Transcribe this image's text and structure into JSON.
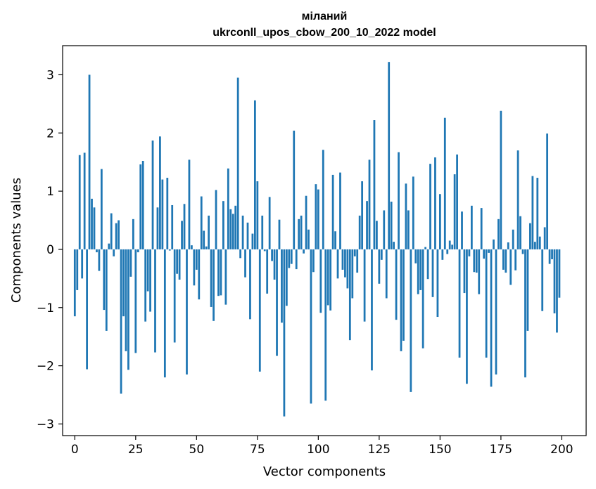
{
  "chart_data": {
    "type": "bar",
    "title": "міланий",
    "subtitle": "ukrconll_upos_cbow_200_10_2022 model",
    "xlabel": "Vector components",
    "ylabel": "Components values",
    "xlim": [
      -5,
      210
    ],
    "ylim": [
      -3.2,
      3.5
    ],
    "xticks": [
      0,
      25,
      50,
      75,
      100,
      125,
      150,
      175,
      200
    ],
    "yticks": [
      -3,
      -2,
      -1,
      0,
      1,
      2,
      3
    ],
    "grid": false,
    "legend": "none",
    "bar_color": "#1f77b4",
    "x": [
      0,
      1,
      2,
      3,
      4,
      5,
      6,
      7,
      8,
      9,
      10,
      11,
      12,
      13,
      14,
      15,
      16,
      17,
      18,
      19,
      20,
      21,
      22,
      23,
      24,
      25,
      26,
      27,
      28,
      29,
      30,
      31,
      32,
      33,
      34,
      35,
      36,
      37,
      38,
      39,
      40,
      41,
      42,
      43,
      44,
      45,
      46,
      47,
      48,
      49,
      50,
      51,
      52,
      53,
      54,
      55,
      56,
      57,
      58,
      59,
      60,
      61,
      62,
      63,
      64,
      65,
      66,
      67,
      68,
      69,
      70,
      71,
      72,
      73,
      74,
      75,
      76,
      77,
      78,
      79,
      80,
      81,
      82,
      83,
      84,
      85,
      86,
      87,
      88,
      89,
      90,
      91,
      92,
      93,
      94,
      95,
      96,
      97,
      98,
      99,
      100,
      101,
      102,
      103,
      104,
      105,
      106,
      107,
      108,
      109,
      110,
      111,
      112,
      113,
      114,
      115,
      116,
      117,
      118,
      119,
      120,
      121,
      122,
      123,
      124,
      125,
      126,
      127,
      128,
      129,
      130,
      131,
      132,
      133,
      134,
      135,
      136,
      137,
      138,
      139,
      140,
      141,
      142,
      143,
      144,
      145,
      146,
      147,
      148,
      149,
      150,
      151,
      152,
      153,
      154,
      155,
      156,
      157,
      158,
      159,
      160,
      161,
      162,
      163,
      164,
      165,
      166,
      167,
      168,
      169,
      170,
      171,
      172,
      173,
      174,
      175,
      176,
      177,
      178,
      179,
      180,
      181,
      182,
      183,
      184,
      185,
      186,
      187,
      188,
      189,
      190,
      191,
      192,
      193,
      194,
      195,
      196,
      197,
      198,
      199
    ],
    "values": [
      -1.15,
      -0.7,
      1.62,
      -0.5,
      1.66,
      -2.06,
      3.0,
      0.87,
      0.72,
      -0.05,
      -0.37,
      1.38,
      -1.04,
      -1.4,
      0.1,
      0.62,
      -0.12,
      0.45,
      0.5,
      -2.48,
      -1.15,
      -1.75,
      -2.07,
      -0.47,
      0.52,
      -1.78,
      -0.05,
      1.46,
      1.52,
      -1.24,
      -0.72,
      -1.07,
      1.87,
      -1.77,
      0.72,
      1.94,
      1.2,
      -2.2,
      1.23,
      -0.02,
      0.76,
      -1.6,
      -0.42,
      -0.52,
      0.49,
      0.78,
      -2.15,
      1.54,
      0.07,
      -0.62,
      -0.35,
      -0.86,
      0.91,
      0.32,
      0.05,
      0.58,
      -0.99,
      -1.23,
      1.02,
      -0.8,
      -0.79,
      0.83,
      -0.95,
      1.39,
      0.69,
      0.61,
      0.75,
      2.95,
      -0.15,
      0.58,
      -0.48,
      0.46,
      -1.2,
      0.27,
      2.56,
      1.17,
      -2.1,
      0.58,
      -0.03,
      -0.76,
      0.9,
      -0.2,
      -0.52,
      -1.83,
      0.51,
      -1.26,
      -2.87,
      -0.97,
      -0.32,
      -0.25,
      2.04,
      -0.34,
      0.52,
      0.58,
      -0.07,
      0.92,
      0.34,
      -2.65,
      -0.39,
      1.12,
      1.03,
      -1.09,
      1.71,
      -2.6,
      -0.96,
      -1.05,
      1.28,
      0.31,
      -0.5,
      1.32,
      -0.35,
      -0.48,
      -0.67,
      -1.56,
      -0.84,
      -0.12,
      -0.4,
      0.58,
      1.17,
      -1.24,
      0.83,
      1.54,
      -2.08,
      2.22,
      0.49,
      -0.59,
      -0.18,
      0.67,
      -0.84,
      3.22,
      0.82,
      0.13,
      -1.21,
      1.67,
      -1.75,
      -1.57,
      1.13,
      0.67,
      -2.45,
      1.25,
      -0.24,
      -0.77,
      -0.7,
      -1.7,
      0.04,
      -0.51,
      1.47,
      -0.82,
      1.58,
      -1.16,
      0.95,
      -0.18,
      2.26,
      -0.08,
      0.15,
      0.08,
      1.29,
      1.63,
      -1.86,
      0.65,
      -0.75,
      -2.31,
      -0.12,
      0.75,
      -0.39,
      -0.4,
      -0.77,
      0.71,
      -0.16,
      -1.86,
      -0.06,
      -2.36,
      0.17,
      -2.15,
      0.52,
      2.38,
      -0.35,
      -0.4,
      0.12,
      -0.61,
      0.34,
      -0.36,
      1.7,
      0.57,
      -0.08,
      -2.2,
      -1.4,
      0.45,
      1.26,
      0.13,
      1.23,
      0.22,
      -1.06,
      0.38,
      1.99,
      -0.25,
      -0.17,
      -1.1,
      -1.43,
      -0.83
    ]
  }
}
